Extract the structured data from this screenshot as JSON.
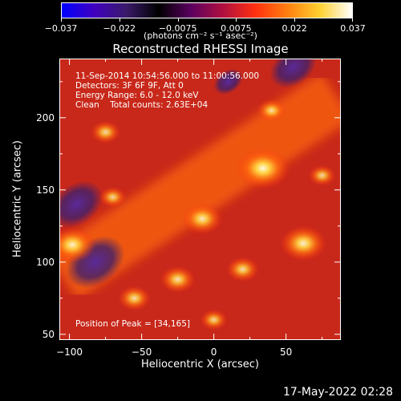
{
  "colorbar": {
    "ticks": [
      "−0.037",
      "−0.022",
      "−0.0075",
      "0.0075",
      "0.022",
      "0.037"
    ],
    "units": "(photons cm⁻² s⁻¹ asec⁻²)",
    "colors": [
      "#0000ff",
      "#4000c0",
      "#3a1a6a",
      "#000000",
      "#5a0060",
      "#b01040",
      "#ff3010",
      "#ff8010",
      "#ffd030",
      "#ffffff"
    ]
  },
  "title": "Reconstructed RHESSI Image",
  "annotations": [
    "11-Sep-2014 10:54:56.000 to 11:00:56.000",
    "Detectors: 3F 6F 9F, Att 0",
    "Energy Range: 6.0 - 12.0 keV",
    "Clean    Total counts: 2.63E+04"
  ],
  "peak_label": "Position of Peak = [34,165]",
  "axes": {
    "x_label": "Heliocentric X (arcsec)",
    "y_label": "Heliocentric Y (arcsec)",
    "x_ticks": [
      "−100",
      "−50",
      "0",
      "50"
    ],
    "y_ticks": [
      "200",
      "150",
      "100",
      "50"
    ],
    "x_range": [
      -107,
      88
    ],
    "y_range": [
      46,
      241
    ]
  },
  "timestamp": "17-May-2022 02:28",
  "image_blobs": [
    {
      "x": 34,
      "y": 165,
      "level": 1.0
    },
    {
      "x": -8,
      "y": 130,
      "level": 0.75
    },
    {
      "x": 62,
      "y": 113,
      "level": 0.85
    },
    {
      "x": -98,
      "y": 112,
      "level": 0.85
    },
    {
      "x": -25,
      "y": 88,
      "level": 0.65
    },
    {
      "x": 20,
      "y": 95,
      "level": 0.6
    },
    {
      "x": 40,
      "y": 205,
      "level": 0.55
    },
    {
      "x": -70,
      "y": 145,
      "level": 0.5
    },
    {
      "x": -75,
      "y": 190,
      "level": 0.55
    },
    {
      "x": -55,
      "y": 75,
      "level": 0.6
    },
    {
      "x": 0,
      "y": 60,
      "level": 0.5
    },
    {
      "x": 75,
      "y": 160,
      "level": 0.5
    }
  ],
  "image_voids": [
    {
      "x": -82,
      "y": 100,
      "level": 1.0
    },
    {
      "x": -95,
      "y": 140,
      "level": 0.9
    },
    {
      "x": 55,
      "y": 235,
      "level": 0.8
    },
    {
      "x": 10,
      "y": 225,
      "level": 0.5
    }
  ]
}
